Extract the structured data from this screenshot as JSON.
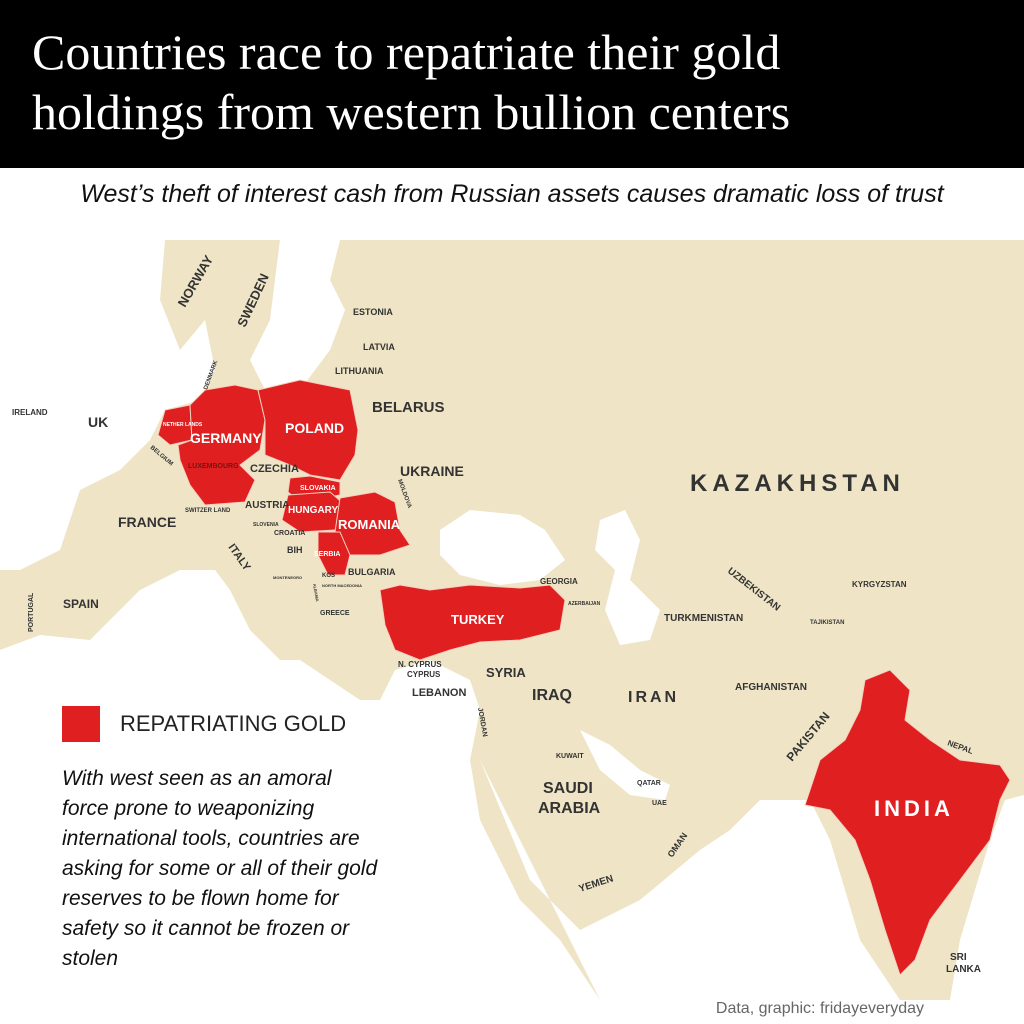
{
  "header": {
    "title_line1": "Countries race to repatriate their gold",
    "title_line2": "holdings from western bullion centers"
  },
  "subtitle": "West’s theft of interest cash from Russian assets causes dramatic loss of trust",
  "colors": {
    "repatriating": "#e02020",
    "land": "#efe5c6",
    "water": "#ffffff",
    "header_bg": "#000000"
  },
  "legend": {
    "label": "REPATRIATING GOLD"
  },
  "note": "With west seen as an amoral force prone to weaponizing international tools, countries are asking for some or all of their gold reserves to be flown home for safety so it cannot be frozen or stolen",
  "credit": "Data, graphic: fridayeveryday",
  "repatriating_countries": [
    "Netherlands",
    "Germany",
    "Poland",
    "Slovakia",
    "Hungary",
    "Romania",
    "Serbia",
    "Turkey",
    "India"
  ],
  "labels": {
    "norway": "NORWAY",
    "sweden": "SWEDEN",
    "estonia": "ESTONIA",
    "latvia": "LATVIA",
    "lithuania": "LITHUANIA",
    "denmark": "DENMARK",
    "ireland": "IRELAND",
    "uk": "UK",
    "netherlands": "NETHER LANDS",
    "belgium": "BELGIUM",
    "luxembourg": "LUXEMBOURG",
    "germany": "GERMANY",
    "poland": "POLAND",
    "belarus": "BELARUS",
    "czechia": "CZECHIA",
    "ukraine": "UKRAINE",
    "slovakia": "SLOVAKIA",
    "moldova": "MOLDOVA",
    "france": "FRANCE",
    "switzerland": "SWITZER LAND",
    "austria": "AUSTRIA",
    "hungary": "HUNGARY",
    "romania": "ROMANIA",
    "slovenia": "SLOVENIA",
    "croatia": "CROATIA",
    "bih": "BIH",
    "serbia": "SERBIA",
    "italy": "ITALY",
    "montenegro": "MONTENEGRO",
    "kos": "KOS",
    "north_macedonia": "NORTH MACEDONIA",
    "albania": "ALBANIA",
    "bulgaria": "BULGARIA",
    "greece": "GREECE",
    "portugal": "PORTUGAL",
    "spain": "SPAIN",
    "turkey": "TURKEY",
    "georgia": "GEORGIA",
    "azerbaijan": "AZERBAIJAN",
    "kazakhstan": "KAZAKHSTAN",
    "uzbekistan": "UZBEKISTAN",
    "kyrgyzstan": "KYRGYZSTAN",
    "turkmenistan": "TURKMENISTAN",
    "tajikistan": "TAJIKISTAN",
    "n_cyprus": "N. CYPRUS",
    "cyprus": "CYPRUS",
    "lebanon": "LEBANON",
    "syria": "SYRIA",
    "iraq": "IRAQ",
    "iran": "IRAN",
    "afghanistan": "AFGHANISTAN",
    "pakistan": "PAKISTAN",
    "jordan": "JORDAN",
    "kuwait": "KUWAIT",
    "qatar": "QATAR",
    "uae": "UAE",
    "saudi_arabia_1": "SAUDI",
    "saudi_arabia_2": "ARABIA",
    "oman": "OMAN",
    "yemen": "YEMEN",
    "india": "INDIA",
    "nepal": "NEPAL",
    "sri_lanka_1": "SRI",
    "sri_lanka_2": "LANKA"
  }
}
